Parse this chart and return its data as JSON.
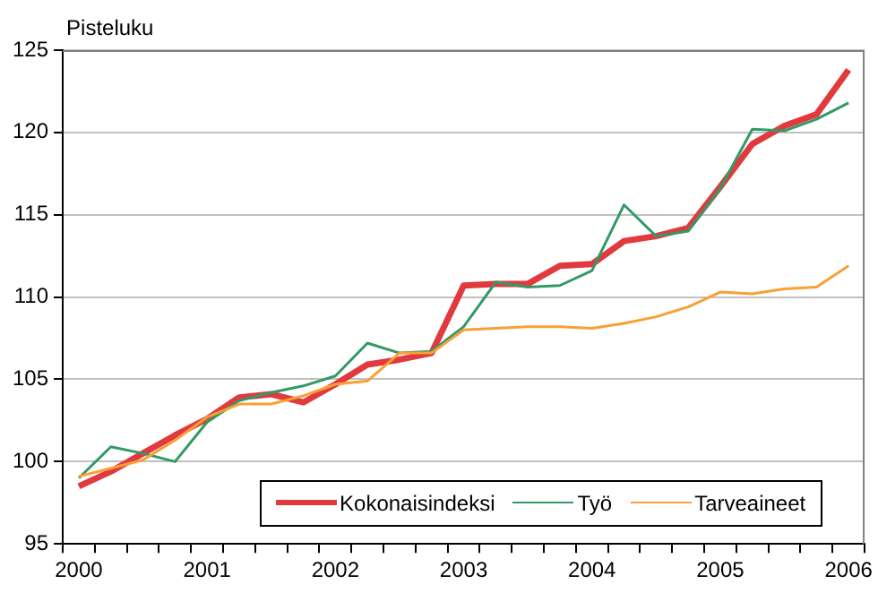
{
  "chart_data": {
    "type": "line",
    "ylabel": "Pisteluku",
    "categories": [
      "2000",
      null,
      null,
      null,
      "2001",
      null,
      null,
      null,
      "2002",
      null,
      null,
      null,
      "2003",
      null,
      null,
      null,
      "2004",
      null,
      null,
      null,
      "2005",
      null,
      null,
      null,
      "2006"
    ],
    "series": [
      {
        "name": "Kokonaisindeksi",
        "color": "#e0393e",
        "values": [
          98.5,
          99.4,
          100.5,
          101.6,
          102.6,
          103.9,
          104.1,
          103.6,
          104.7,
          105.9,
          106.2,
          106.6,
          110.7,
          110.8,
          110.8,
          111.9,
          112.0,
          113.4,
          113.7,
          114.2,
          116.7,
          119.3,
          120.4,
          121.1,
          123.8
        ]
      },
      {
        "name": "Työ",
        "color": "#339966",
        "values": [
          99.0,
          100.9,
          100.5,
          100.0,
          102.4,
          103.7,
          104.2,
          104.6,
          105.2,
          107.2,
          106.6,
          106.7,
          108.2,
          110.9,
          110.6,
          110.7,
          111.6,
          115.6,
          113.7,
          114.0,
          116.6,
          120.2,
          120.1,
          120.8,
          121.8
        ]
      },
      {
        "name": "Tarveaineet",
        "color": "#f7a035",
        "values": [
          99.1,
          99.6,
          100.1,
          101.3,
          102.7,
          103.5,
          103.5,
          104.0,
          104.7,
          104.9,
          106.6,
          106.6,
          108.0,
          108.1,
          108.2,
          108.2,
          108.1,
          108.4,
          108.8,
          109.4,
          110.3,
          110.2,
          110.5,
          110.6,
          111.9
        ]
      }
    ],
    "ylim": [
      95,
      125
    ],
    "yticks": [
      95,
      100,
      105,
      110,
      115,
      120,
      125
    ],
    "grid": "y",
    "legend": "bottom right",
    "marker": "none",
    "line_style": "solid"
  }
}
